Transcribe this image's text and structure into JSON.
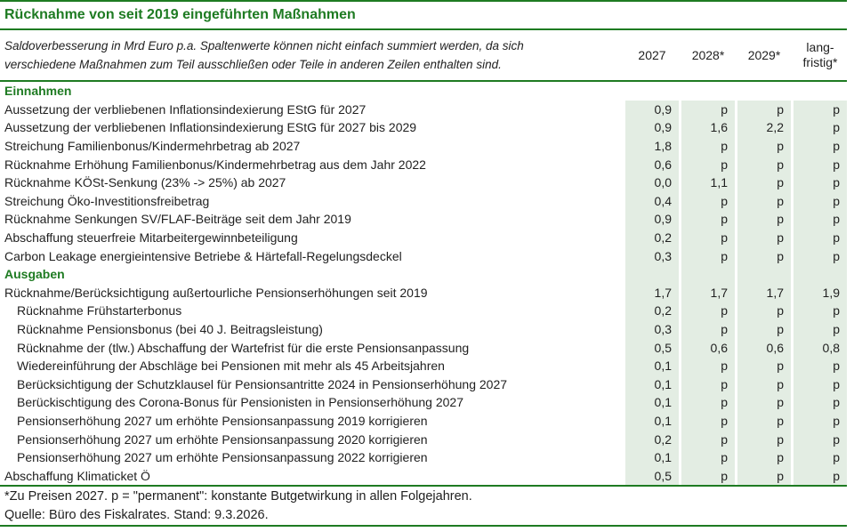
{
  "title": "Rücknahme von seit 2019 eingeführten Maßnahmen",
  "note": "Saldoverbesserung in Mrd Euro p.a. Spaltenwerte können nicht einfach summiert werden, da sich verschiedene Maßnahmen zum Teil ausschließen oder Teile in anderen Zeilen enthalten sind.",
  "columns": [
    "2027",
    "2028*",
    "2029*",
    "lang-fristig*"
  ],
  "rows": [
    {
      "label": "Einnahmen",
      "section": true,
      "shaded": false
    },
    {
      "label": "Aussetzung der verbliebenen Inflationsindexierung EStG für 2027",
      "shaded": true,
      "values": [
        "0,9",
        "p",
        "p",
        "p"
      ]
    },
    {
      "label": "Aussetzung der verbliebenen Inflationsindexierung EStG für 2027 bis 2029",
      "shaded": true,
      "values": [
        "0,9",
        "1,6",
        "2,2",
        "p"
      ]
    },
    {
      "label": "Streichung Familienbonus/Kindermehrbetrag ab 2027",
      "shaded": true,
      "values": [
        "1,8",
        "p",
        "p",
        "p"
      ]
    },
    {
      "label": "Rücknahme Erhöhung Familienbonus/Kindermehrbetrag aus dem Jahr 2022",
      "shaded": true,
      "values": [
        "0,6",
        "p",
        "p",
        "p"
      ]
    },
    {
      "label": "Rücknahme KÖSt-Senkung (23% -> 25%) ab 2027",
      "shaded": true,
      "values": [
        "0,0",
        "1,1",
        "p",
        "p"
      ]
    },
    {
      "label": "Streichung Öko-Investitionsfreibetrag",
      "shaded": true,
      "values": [
        "0,4",
        "p",
        "p",
        "p"
      ]
    },
    {
      "label": "Rücknahme Senkungen SV/FLAF-Beiträge seit dem Jahr 2019",
      "shaded": true,
      "values": [
        "0,9",
        "p",
        "p",
        "p"
      ]
    },
    {
      "label": "Abschaffung steuerfreie Mitarbeitergewinnbeteiligung",
      "shaded": true,
      "values": [
        "0,2",
        "p",
        "p",
        "p"
      ]
    },
    {
      "label": "Carbon Leakage energieintensive Betriebe & Härtefall-Regelungsdeckel",
      "shaded": true,
      "values": [
        "0,3",
        "p",
        "p",
        "p"
      ]
    },
    {
      "label": "Ausgaben",
      "section": true,
      "shaded": true
    },
    {
      "label": "Rücknahme/Berücksichtigung außertourliche Pensionserhöhungen seit 2019",
      "shaded": true,
      "values": [
        "1,7",
        "1,7",
        "1,7",
        "1,9"
      ]
    },
    {
      "label": "Rücknahme Frühstarterbonus",
      "indent": true,
      "shaded": true,
      "values": [
        "0,2",
        "p",
        "p",
        "p"
      ]
    },
    {
      "label": "Rücknahme Pensionsbonus (bei 40 J. Beitragsleistung)",
      "indent": true,
      "shaded": true,
      "values": [
        "0,3",
        "p",
        "p",
        "p"
      ]
    },
    {
      "label": "Rücknahme der (tlw.) Abschaffung der Wartefrist für die erste Pensionsanpassung",
      "indent": true,
      "shaded": true,
      "values": [
        "0,5",
        "0,6",
        "0,6",
        "0,8"
      ]
    },
    {
      "label": "Wiedereinführung der Abschläge bei Pensionen mit mehr als 45 Arbeitsjahren",
      "indent": true,
      "shaded": true,
      "values": [
        "0,1",
        "p",
        "p",
        "p"
      ]
    },
    {
      "label": "Berücksichtigung der Schutzklausel für Pensionsantritte 2024 in Pensionserhöhung 2027",
      "indent": true,
      "shaded": true,
      "values": [
        "0,1",
        "p",
        "p",
        "p"
      ]
    },
    {
      "label": "Berückischtigung des Corona-Bonus für Pensionisten in Pensionserhöhung 2027",
      "indent": true,
      "shaded": true,
      "values": [
        "0,1",
        "p",
        "p",
        "p"
      ]
    },
    {
      "label": "Pensionserhöhung 2027 um erhöhte Pensionsanpassung 2019 korrigieren",
      "indent": true,
      "shaded": true,
      "values": [
        "0,1",
        "p",
        "p",
        "p"
      ]
    },
    {
      "label": "Pensionserhöhung 2027 um erhöhte Pensionsanpassung 2020 korrigieren",
      "indent": true,
      "shaded": true,
      "values": [
        "0,2",
        "p",
        "p",
        "p"
      ]
    },
    {
      "label": "Pensionserhöhung 2027 um erhöhte Pensionsanpassung 2022 korrigieren",
      "indent": true,
      "shaded": true,
      "values": [
        "0,1",
        "p",
        "p",
        "p"
      ]
    },
    {
      "label": "Abschaffung Klimaticket Ö",
      "shaded": true,
      "values": [
        "0,5",
        "p",
        "p",
        "p"
      ]
    }
  ],
  "footnote": "*Zu Preisen 2027. p = \"permanent\": konstante Butgetwirkung in allen Folgejahren.",
  "source": "Quelle: Büro des Fiskalrates. Stand: 9.3.2026.",
  "colors": {
    "accent_green": "#1e7b22",
    "cell_bg": "#e3ede3",
    "text": "#1f1f1f"
  }
}
